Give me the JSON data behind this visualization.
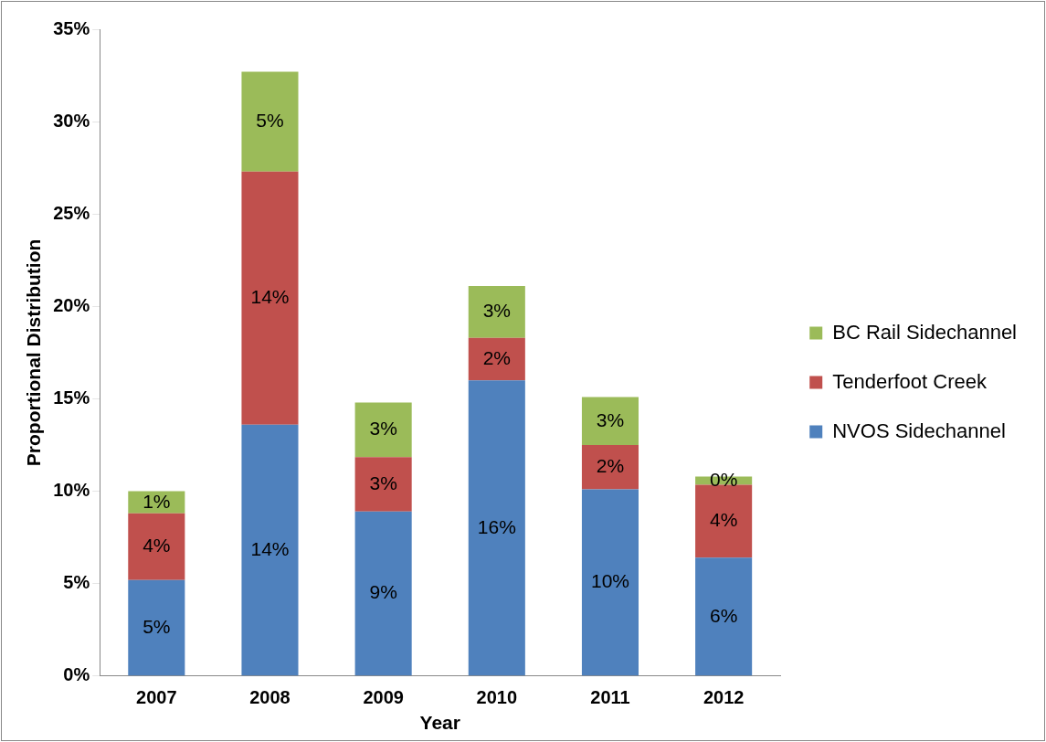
{
  "chart_data": {
    "type": "bar",
    "stacked": true,
    "xlabel": "Year",
    "ylabel": "Proportional Distribution",
    "categories": [
      "2007",
      "2008",
      "2009",
      "2010",
      "2011",
      "2012"
    ],
    "series": [
      {
        "name": "NVOS Sidechannel",
        "color": "#4f81bd",
        "values": [
          5.2,
          13.6,
          8.9,
          16.0,
          10.1,
          6.4
        ],
        "value_labels": [
          "5%",
          "14%",
          "9%",
          "16%",
          "10%",
          "6%"
        ]
      },
      {
        "name": "Tenderfoot Creek",
        "color": "#c0504d",
        "values": [
          3.6,
          13.7,
          2.95,
          2.3,
          2.4,
          3.95
        ],
        "value_labels": [
          "4%",
          "14%",
          "3%",
          "2%",
          "2%",
          "4%"
        ]
      },
      {
        "name": "BC Rail Sidechannel",
        "color": "#9bbb59",
        "values": [
          1.2,
          5.4,
          2.95,
          2.8,
          2.6,
          0.45
        ],
        "value_labels": [
          "1%",
          "5%",
          "3%",
          "3%",
          "3%",
          "0%"
        ]
      }
    ],
    "ylim": [
      0,
      35
    ],
    "yticks": [
      {
        "value": 0,
        "label": "0%"
      },
      {
        "value": 5,
        "label": "5%"
      },
      {
        "value": 10,
        "label": "10%"
      },
      {
        "value": 15,
        "label": "15%"
      },
      {
        "value": 20,
        "label": "20%"
      },
      {
        "value": 25,
        "label": "25%"
      },
      {
        "value": 30,
        "label": "30%"
      },
      {
        "value": 35,
        "label": "35%"
      }
    ],
    "grid": false,
    "legend": "right"
  }
}
